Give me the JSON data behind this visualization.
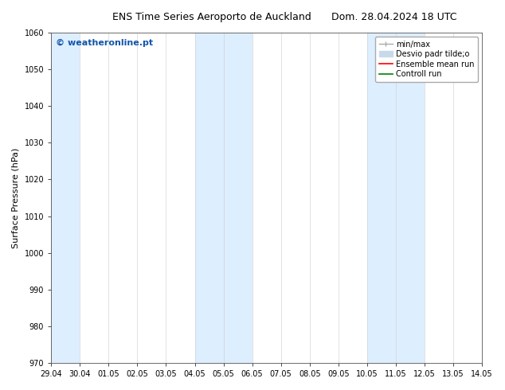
{
  "title_left": "ENS Time Series Aeroporto de Auckland",
  "title_right": "Dom. 28.04.2024 18 UTC",
  "ylabel": "Surface Pressure (hPa)",
  "ylim": [
    970,
    1060
  ],
  "yticks": [
    970,
    980,
    990,
    1000,
    1010,
    1020,
    1030,
    1040,
    1050,
    1060
  ],
  "x_labels": [
    "29.04",
    "30.04",
    "01.05",
    "02.05",
    "03.05",
    "04.05",
    "05.05",
    "06.05",
    "07.05",
    "08.05",
    "09.05",
    "10.05",
    "11.05",
    "12.05",
    "13.05",
    "14.05"
  ],
  "x_values": [
    0,
    1,
    2,
    3,
    4,
    5,
    6,
    7,
    8,
    9,
    10,
    11,
    12,
    13,
    14,
    15
  ],
  "shaded_bands": [
    {
      "xmin": 0,
      "xmax": 1
    },
    {
      "xmin": 5,
      "xmax": 7
    },
    {
      "xmin": 11,
      "xmax": 13
    }
  ],
  "band_color": "#ddeeff",
  "watermark": "© weatheronline.pt",
  "watermark_color": "#1155aa",
  "legend_labels": [
    "min/max",
    "Desvio padr tilde;o",
    "Ensemble mean run",
    "Controll run"
  ],
  "legend_colors": [
    "#aaaaaa",
    "#c8daea",
    "red",
    "green"
  ],
  "background_color": "#ffffff",
  "plot_bg_color": "#ffffff",
  "title_fontsize": 9,
  "tick_fontsize": 7,
  "ylabel_fontsize": 8,
  "legend_fontsize": 7
}
